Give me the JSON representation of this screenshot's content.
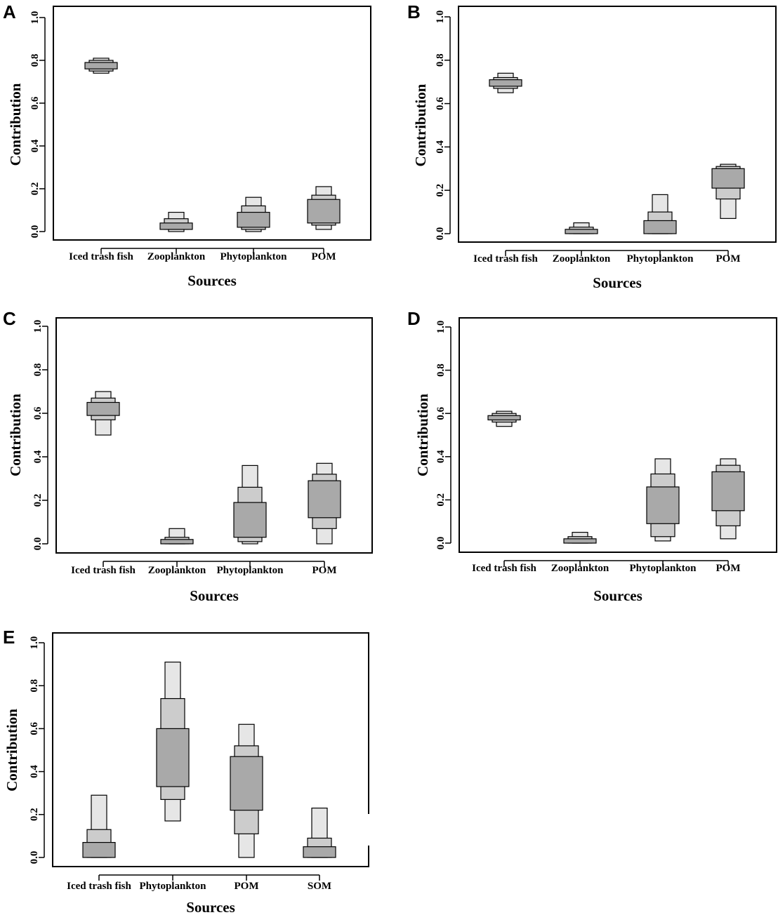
{
  "colors": {
    "outer": "#e6e6e6",
    "middle": "#cccccc",
    "inner": "#a9a9a9",
    "frame": "#000000"
  },
  "chart_data": [
    {
      "type": "box",
      "panel": "A",
      "xlabel": "Sources",
      "ylabel": "Contribution",
      "ylim": [
        0,
        1
      ],
      "yticks": [
        "0.0",
        "0.2",
        "0.4",
        "0.6",
        "0.8",
        "1.0"
      ],
      "categories": [
        "Iced trash fish",
        "Zooplankton",
        "Phytoplankton",
        "POM"
      ],
      "intervals": [
        {
          "outer": [
            0.74,
            0.81
          ],
          "middle": [
            0.75,
            0.8
          ],
          "inner": [
            0.76,
            0.79
          ]
        },
        {
          "outer": [
            0.0,
            0.09
          ],
          "middle": [
            0.01,
            0.06
          ],
          "inner": [
            0.01,
            0.04
          ]
        },
        {
          "outer": [
            0.0,
            0.16
          ],
          "middle": [
            0.01,
            0.12
          ],
          "inner": [
            0.02,
            0.09
          ]
        },
        {
          "outer": [
            0.01,
            0.21
          ],
          "middle": [
            0.03,
            0.17
          ],
          "inner": [
            0.04,
            0.15
          ]
        }
      ]
    },
    {
      "type": "box",
      "panel": "B",
      "xlabel": "Sources",
      "ylabel": "Contribution",
      "ylim": [
        0,
        1
      ],
      "yticks": [
        "0.0",
        "0.2",
        "0.4",
        "0.6",
        "0.8",
        "1.0"
      ],
      "categories": [
        "Iced trash fish",
        "Zooplankton",
        "Phytoplankton",
        "POM"
      ],
      "intervals": [
        {
          "outer": [
            0.65,
            0.74
          ],
          "middle": [
            0.67,
            0.72
          ],
          "inner": [
            0.68,
            0.71
          ]
        },
        {
          "outer": [
            0.0,
            0.05
          ],
          "middle": [
            0.0,
            0.03
          ],
          "inner": [
            0.0,
            0.02
          ]
        },
        {
          "outer": [
            0.0,
            0.18
          ],
          "middle": [
            0.0,
            0.1
          ],
          "inner": [
            0.0,
            0.06
          ]
        },
        {
          "outer": [
            0.07,
            0.32
          ],
          "middle": [
            0.16,
            0.31
          ],
          "inner": [
            0.21,
            0.3
          ]
        }
      ]
    },
    {
      "type": "box",
      "panel": "C",
      "xlabel": "Sources",
      "ylabel": "Contribution",
      "ylim": [
        0,
        1
      ],
      "yticks": [
        "0.0",
        "0.2",
        "0.4",
        "0.6",
        "0.8",
        "1.0"
      ],
      "categories": [
        "Iced trash fish",
        "Zooplankton",
        "Phytoplankton",
        "POM"
      ],
      "intervals": [
        {
          "outer": [
            0.5,
            0.7
          ],
          "middle": [
            0.57,
            0.67
          ],
          "inner": [
            0.59,
            0.65
          ]
        },
        {
          "outer": [
            0.0,
            0.07
          ],
          "middle": [
            0.0,
            0.03
          ],
          "inner": [
            0.0,
            0.02
          ]
        },
        {
          "outer": [
            0.0,
            0.36
          ],
          "middle": [
            0.01,
            0.26
          ],
          "inner": [
            0.03,
            0.19
          ]
        },
        {
          "outer": [
            0.0,
            0.37
          ],
          "middle": [
            0.07,
            0.32
          ],
          "inner": [
            0.12,
            0.29
          ]
        }
      ]
    },
    {
      "type": "box",
      "panel": "D",
      "xlabel": "Sources",
      "ylabel": "Contribution",
      "ylim": [
        0,
        1
      ],
      "yticks": [
        "0.0",
        "0.2",
        "0.4",
        "0.6",
        "0.8",
        "1.0"
      ],
      "categories": [
        "Iced trash fish",
        "Zooplankton",
        "Phytoplankton",
        "POM"
      ],
      "intervals": [
        {
          "outer": [
            0.54,
            0.61
          ],
          "middle": [
            0.56,
            0.6
          ],
          "inner": [
            0.57,
            0.59
          ]
        },
        {
          "outer": [
            0.0,
            0.05
          ],
          "middle": [
            0.0,
            0.03
          ],
          "inner": [
            0.0,
            0.02
          ]
        },
        {
          "outer": [
            0.01,
            0.39
          ],
          "middle": [
            0.03,
            0.32
          ],
          "inner": [
            0.09,
            0.26
          ]
        },
        {
          "outer": [
            0.02,
            0.39
          ],
          "middle": [
            0.08,
            0.36
          ],
          "inner": [
            0.15,
            0.33
          ]
        }
      ]
    },
    {
      "type": "box",
      "panel": "E",
      "xlabel": "Sources",
      "ylabel": "Contribution",
      "ylim": [
        0,
        1
      ],
      "yticks": [
        "0.0",
        "0.2",
        "0.4",
        "0.6",
        "0.8",
        "1.0"
      ],
      "categories": [
        "Iced trash fish",
        "Phytoplankton",
        "POM",
        "SOM"
      ],
      "intervals": [
        {
          "outer": [
            0.0,
            0.29
          ],
          "middle": [
            0.0,
            0.13
          ],
          "inner": [
            0.0,
            0.07
          ]
        },
        {
          "outer": [
            0.17,
            0.91
          ],
          "middle": [
            0.27,
            0.74
          ],
          "inner": [
            0.33,
            0.6
          ]
        },
        {
          "outer": [
            0.0,
            0.62
          ],
          "middle": [
            0.11,
            0.52
          ],
          "inner": [
            0.22,
            0.47
          ]
        },
        {
          "outer": [
            0.0,
            0.23
          ],
          "middle": [
            0.0,
            0.09
          ],
          "inner": [
            0.0,
            0.05
          ]
        }
      ]
    }
  ]
}
